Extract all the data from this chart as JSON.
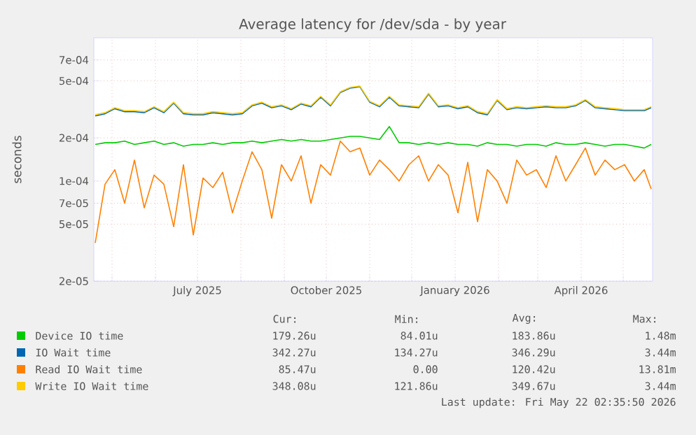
{
  "chart_data": {
    "type": "line",
    "title": "Average latency for /dev/sda - by year",
    "ylabel": "seconds",
    "log": true,
    "grid": true,
    "legend": "bottom",
    "xlim": [
      "2025-04-18",
      "2026-05-22"
    ],
    "xticks": [
      {
        "value": "2025-05-01",
        "label": null
      },
      {
        "value": "2025-06-01",
        "label": null
      },
      {
        "value": "2025-07-01",
        "label": "July 2025"
      },
      {
        "value": "2025-08-01",
        "label": null
      },
      {
        "value": "2025-09-01",
        "label": null
      },
      {
        "value": "2025-10-01",
        "label": "October 2025"
      },
      {
        "value": "2025-11-01",
        "label": null
      },
      {
        "value": "2025-12-01",
        "label": null
      },
      {
        "value": "2026-01-01",
        "label": "January 2026"
      },
      {
        "value": "2026-02-01",
        "label": null
      },
      {
        "value": "2026-03-01",
        "label": null
      },
      {
        "value": "2026-04-01",
        "label": "April 2026"
      },
      {
        "value": "2026-05-01",
        "label": null
      }
    ],
    "ylim": [
      2e-05,
      0.001
    ],
    "yticks": [
      {
        "value": 2e-05,
        "label": "2e-05"
      },
      {
        "value": 5e-05,
        "label": "5e-05"
      },
      {
        "value": 7e-05,
        "label": "7e-05"
      },
      {
        "value": 0.0001,
        "label": "1e-04"
      },
      {
        "value": 0.0002,
        "label": "2e-04"
      },
      {
        "value": 0.0005,
        "label": "5e-04"
      },
      {
        "value": 0.0007,
        "label": "7e-04"
      }
    ],
    "x": [
      "2025-04-19",
      "2025-04-26",
      "2025-05-03",
      "2025-05-10",
      "2025-05-17",
      "2025-05-24",
      "2025-05-31",
      "2025-06-07",
      "2025-06-14",
      "2025-06-21",
      "2025-06-28",
      "2025-07-05",
      "2025-07-12",
      "2025-07-19",
      "2025-07-26",
      "2025-08-02",
      "2025-08-09",
      "2025-08-16",
      "2025-08-23",
      "2025-08-30",
      "2025-09-06",
      "2025-09-13",
      "2025-09-20",
      "2025-09-27",
      "2025-10-04",
      "2025-10-11",
      "2025-10-18",
      "2025-10-25",
      "2025-11-01",
      "2025-11-08",
      "2025-11-15",
      "2025-11-22",
      "2025-11-29",
      "2025-12-06",
      "2025-12-13",
      "2025-12-20",
      "2025-12-27",
      "2026-01-03",
      "2026-01-10",
      "2026-01-17",
      "2026-01-24",
      "2026-01-31",
      "2026-02-07",
      "2026-02-14",
      "2026-02-21",
      "2026-02-28",
      "2026-03-07",
      "2026-03-14",
      "2026-03-21",
      "2026-03-28",
      "2026-04-04",
      "2026-04-11",
      "2026-04-18",
      "2026-04-25",
      "2026-05-02",
      "2026-05-09",
      "2026-05-16",
      "2026-05-21"
    ],
    "series": [
      {
        "name": "Device IO time",
        "color": "#00cc00",
        "values": [
          0.00018,
          0.000185,
          0.000185,
          0.00019,
          0.00018,
          0.000185,
          0.00019,
          0.00018,
          0.000185,
          0.000175,
          0.00018,
          0.00018,
          0.000185,
          0.00018,
          0.000185,
          0.000185,
          0.00019,
          0.000185,
          0.00019,
          0.000195,
          0.00019,
          0.000195,
          0.00019,
          0.00019,
          0.000195,
          0.0002,
          0.000205,
          0.000205,
          0.0002,
          0.000195,
          0.00024,
          0.000185,
          0.000185,
          0.00018,
          0.000185,
          0.00018,
          0.000185,
          0.00018,
          0.00018,
          0.000175,
          0.000185,
          0.00018,
          0.00018,
          0.000175,
          0.00018,
          0.00018,
          0.000175,
          0.000185,
          0.00018,
          0.00018,
          0.000185,
          0.00018,
          0.000175,
          0.00018,
          0.00018,
          0.000175,
          0.00017,
          0.00018
        ]
      },
      {
        "name": "IO Wait time",
        "color": "#0066b3",
        "values": [
          0.000285,
          0.000295,
          0.00032,
          0.000305,
          0.000305,
          0.0003,
          0.000325,
          0.0003,
          0.00035,
          0.000295,
          0.00029,
          0.00029,
          0.0003,
          0.000295,
          0.00029,
          0.000295,
          0.000335,
          0.00035,
          0.000325,
          0.000335,
          0.000315,
          0.000345,
          0.00033,
          0.000385,
          0.000335,
          0.000415,
          0.000445,
          0.000455,
          0.000355,
          0.00033,
          0.000385,
          0.000335,
          0.00033,
          0.000325,
          0.000405,
          0.00033,
          0.000335,
          0.00032,
          0.00033,
          0.0003,
          0.00029,
          0.000365,
          0.000315,
          0.000325,
          0.00032,
          0.000325,
          0.00033,
          0.000325,
          0.000325,
          0.000335,
          0.000365,
          0.000325,
          0.00032,
          0.000315,
          0.00031,
          0.00031,
          0.00031,
          0.000325
        ]
      },
      {
        "name": "Read IO Wait time",
        "color": "#ff8000",
        "values": [
          3.7e-05,
          9.5e-05,
          0.00012,
          7e-05,
          0.00014,
          6.5e-05,
          0.00011,
          9.5e-05,
          4.8e-05,
          0.00013,
          4.2e-05,
          0.000105,
          9e-05,
          0.000115,
          6e-05,
          0.0001,
          0.00016,
          0.00012,
          5.5e-05,
          0.00013,
          0.0001,
          0.00015,
          7e-05,
          0.00013,
          0.00011,
          0.00019,
          0.00016,
          0.00017,
          0.00011,
          0.00014,
          0.00012,
          0.0001,
          0.00013,
          0.00015,
          0.0001,
          0.00013,
          0.00011,
          6e-05,
          0.000135,
          5.2e-05,
          0.00012,
          0.0001,
          7e-05,
          0.00014,
          0.00011,
          0.00012,
          9e-05,
          0.00015,
          0.0001,
          0.00013,
          0.00017,
          0.00011,
          0.00014,
          0.00012,
          0.00013,
          0.0001,
          0.00012,
          8.8e-05
        ]
      },
      {
        "name": "Write IO Wait time",
        "color": "#ffcc00",
        "values": [
          0.00029,
          0.0003,
          0.000325,
          0.00031,
          0.00031,
          0.000305,
          0.00033,
          0.000305,
          0.000355,
          0.0003,
          0.000295,
          0.000295,
          0.000305,
          0.0003,
          0.000295,
          0.0003,
          0.00034,
          0.000355,
          0.00033,
          0.00034,
          0.00032,
          0.00035,
          0.000335,
          0.00039,
          0.00034,
          0.00042,
          0.00045,
          0.00046,
          0.00036,
          0.000335,
          0.00039,
          0.00034,
          0.000335,
          0.00033,
          0.00041,
          0.000335,
          0.00034,
          0.000325,
          0.000335,
          0.000305,
          0.000295,
          0.00037,
          0.00032,
          0.00033,
          0.000325,
          0.00033,
          0.000335,
          0.00033,
          0.00033,
          0.00034,
          0.00037,
          0.00033,
          0.000325,
          0.00032,
          0.000315,
          0.000315,
          0.000315,
          0.00033
        ]
      }
    ],
    "annotations": [
      "Cur:",
      "Min:",
      "Avg:",
      "Max:",
      "179.26u",
      "84.01u",
      "183.86u",
      "1.48m",
      "342.27u",
      "134.27u",
      "346.29u",
      "3.44m",
      "85.47u",
      "0.00",
      "120.42u",
      "13.81m",
      "348.08u",
      "121.86u",
      "349.67u",
      "3.44m",
      "Last update: Fri May 22 02:35:50 2026"
    ]
  }
}
